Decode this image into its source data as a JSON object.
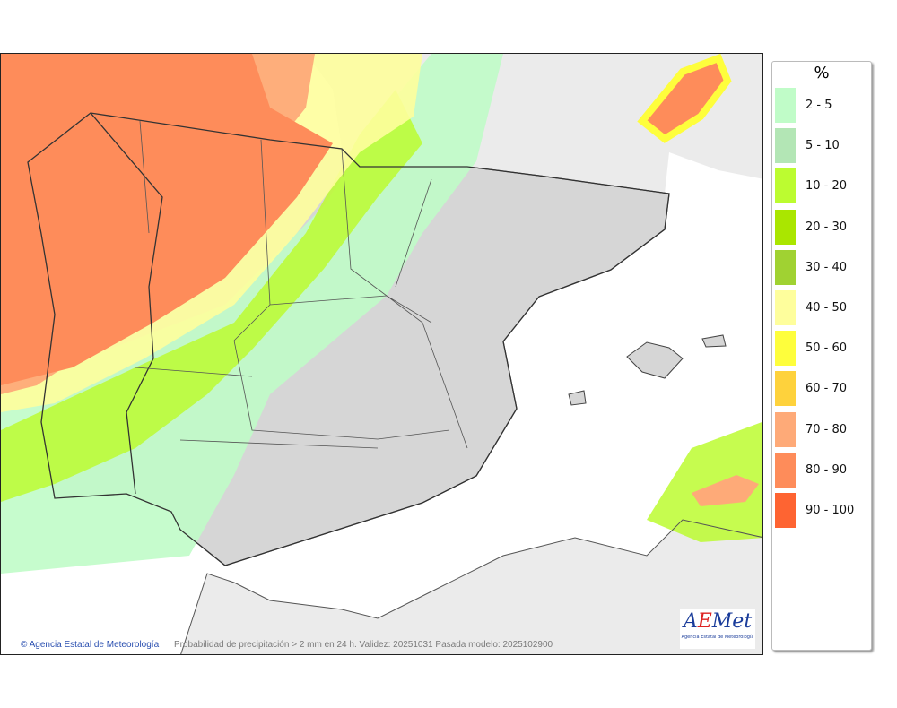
{
  "legend": {
    "title": "%",
    "items": [
      {
        "label": "2 - 5",
        "color": "#c0fcc8"
      },
      {
        "label": "5 - 10",
        "color": "#b3e6b5"
      },
      {
        "label": "10 - 20",
        "color": "#bcfc30"
      },
      {
        "label": "20 - 30",
        "color": "#aae600"
      },
      {
        "label": "30 - 40",
        "color": "#a0d232"
      },
      {
        "label": "40 - 50",
        "color": "#fefe9c"
      },
      {
        "label": "50 - 60",
        "color": "#fefe3c"
      },
      {
        "label": "60 - 70",
        "color": "#fed23c"
      },
      {
        "label": "70 - 80",
        "color": "#feaa78"
      },
      {
        "label": "80 - 90",
        "color": "#fe8c5a"
      },
      {
        "label": "90 - 100",
        "color": "#fe6432"
      }
    ]
  },
  "map": {
    "credit": "© Agencia Estatal de Meteorología",
    "caption": "Probabilidad de precipitación > 2 mm en 24 h. Validez: 20251031 Pasada modelo: 2025102900",
    "logo_text": "AEMet",
    "logo_subtitle": "Agencia Estatal de Meteorología"
  }
}
